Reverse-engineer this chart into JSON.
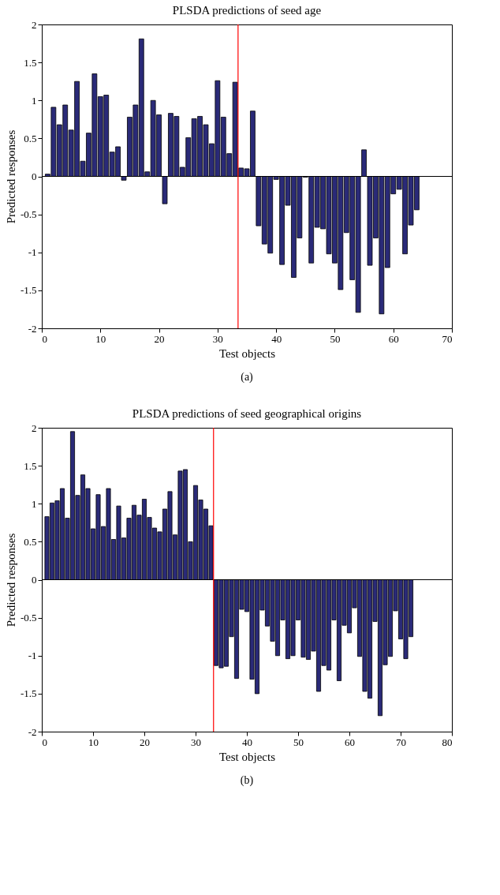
{
  "chart_data": [
    {
      "type": "bar",
      "title": "PLSDA predictions of seed age",
      "xlabel": "Test objects",
      "ylabel": "Predicted responses",
      "annotations": [
        "(a)"
      ],
      "x": [
        1,
        2,
        3,
        4,
        5,
        6,
        7,
        8,
        9,
        10,
        11,
        12,
        13,
        14,
        15,
        16,
        17,
        18,
        19,
        20,
        21,
        22,
        23,
        24,
        25,
        26,
        27,
        28,
        29,
        30,
        31,
        32,
        33,
        34,
        35,
        36,
        37,
        38,
        39,
        40,
        41,
        42,
        43,
        44,
        45,
        46,
        47,
        48,
        49,
        50,
        51,
        52,
        53,
        54,
        55,
        56,
        57,
        58,
        59,
        60,
        61,
        62,
        63,
        64
      ],
      "values": [
        0.03,
        0.91,
        0.68,
        0.94,
        0.61,
        1.25,
        0.2,
        0.57,
        1.35,
        1.05,
        1.07,
        0.32,
        0.39,
        -0.05,
        0.78,
        0.94,
        1.81,
        0.06,
        1.0,
        0.81,
        -0.36,
        0.83,
        0.79,
        0.12,
        0.51,
        0.76,
        0.79,
        0.68,
        0.43,
        1.26,
        0.78,
        0.3,
        1.24,
        0.11,
        0.1,
        0.86,
        -0.65,
        -0.89,
        -1.01,
        -0.04,
        -1.16,
        -0.38,
        -1.33,
        -0.81,
        -0.01,
        -1.14,
        -0.67,
        -0.69,
        -1.02,
        -1.14,
        -1.49,
        -0.74,
        -1.36,
        -1.79,
        0.35,
        -1.17,
        -0.81,
        -1.81,
        -1.2,
        -0.23,
        -0.17,
        -1.02,
        -0.64,
        -0.44
      ],
      "color": "#2a2a78",
      "xlim": [
        0,
        70
      ],
      "xticks": [
        0,
        10,
        20,
        30,
        40,
        50,
        60,
        70
      ],
      "ylim": [
        -2,
        2
      ],
      "yticks": [
        -2,
        -1.5,
        -1,
        -0.5,
        0,
        0.5,
        1,
        1.5,
        2
      ],
      "grid": false,
      "ref_lines": [
        {
          "axis": "y",
          "value": 0,
          "color": "#000000"
        },
        {
          "axis": "x",
          "value": 33.5,
          "color": "#ff0000"
        }
      ]
    },
    {
      "type": "bar",
      "title": "PLSDA predictions of seed geographical origins",
      "xlabel": "Test objects",
      "ylabel": "Predicted responses",
      "annotations": [
        "(b)"
      ],
      "x": [
        1,
        2,
        3,
        4,
        5,
        6,
        7,
        8,
        9,
        10,
        11,
        12,
        13,
        14,
        15,
        16,
        17,
        18,
        19,
        20,
        21,
        22,
        23,
        24,
        25,
        26,
        27,
        28,
        29,
        30,
        31,
        32,
        33,
        34,
        35,
        36,
        37,
        38,
        39,
        40,
        41,
        42,
        43,
        44,
        45,
        46,
        47,
        48,
        49,
        50,
        51,
        52,
        53,
        54,
        55,
        56,
        57,
        58,
        59,
        60,
        61,
        62,
        63,
        64,
        65,
        66,
        67,
        68,
        69,
        70,
        71,
        72
      ],
      "values": [
        0.83,
        1.01,
        1.04,
        1.2,
        0.81,
        1.95,
        1.11,
        1.38,
        1.2,
        0.67,
        1.12,
        0.7,
        1.2,
        0.53,
        0.97,
        0.55,
        0.81,
        0.98,
        0.85,
        1.06,
        0.82,
        0.68,
        0.63,
        0.93,
        1.16,
        0.59,
        1.43,
        1.45,
        0.5,
        1.24,
        1.05,
        0.93,
        0.71,
        -1.13,
        -1.16,
        -1.14,
        -0.75,
        -1.3,
        -0.39,
        -0.42,
        -1.31,
        -1.5,
        -0.4,
        -0.61,
        -0.81,
        -1.0,
        -0.53,
        -1.04,
        -1.0,
        -0.53,
        -1.02,
        -1.05,
        -0.94,
        -1.47,
        -1.13,
        -1.19,
        -0.53,
        -1.33,
        -0.6,
        -0.7,
        -0.37,
        -1.01,
        -1.47,
        -1.56,
        -0.55,
        -1.79,
        -1.12,
        -1.01,
        -0.41,
        -0.78,
        -1.04,
        -0.75
      ],
      "color": "#2a2a78",
      "xlim": [
        0,
        80
      ],
      "xticks": [
        0,
        10,
        20,
        30,
        40,
        50,
        60,
        70,
        80
      ],
      "ylim": [
        -2,
        2
      ],
      "yticks": [
        -2,
        -1.5,
        -1,
        -0.5,
        0,
        0.5,
        1,
        1.5,
        2
      ],
      "grid": false,
      "ref_lines": [
        {
          "axis": "y",
          "value": 0,
          "color": "#000000"
        },
        {
          "axis": "x",
          "value": 33.5,
          "color": "#ff0000"
        }
      ]
    }
  ]
}
